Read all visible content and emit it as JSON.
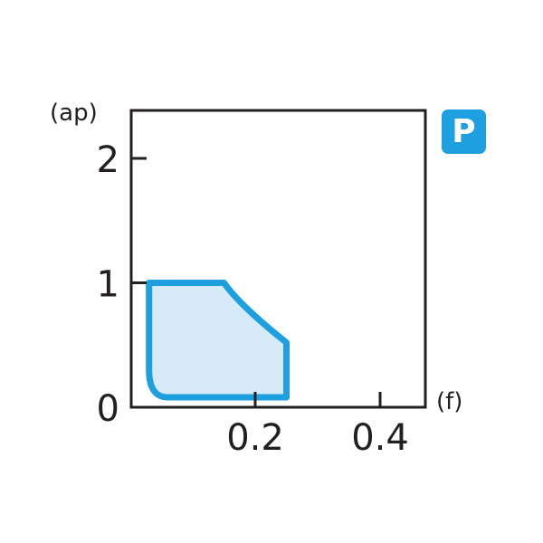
{
  "chart_data": {
    "type": "area",
    "xlabel": "(f)",
    "ylabel": "(ap)",
    "xlim": [
      0,
      0.47
    ],
    "ylim": [
      0,
      2.4
    ],
    "x_ticks": [
      {
        "value": 0.2,
        "label": "0.2"
      },
      {
        "value": 0.4,
        "label": "0.4"
      }
    ],
    "y_ticks": [
      {
        "value": 0,
        "label": "0"
      },
      {
        "value": 1,
        "label": "1"
      },
      {
        "value": 2,
        "label": "2"
      }
    ],
    "grid": false,
    "region": [
      [
        0.03,
        1.0
      ],
      [
        0.15,
        1.0
      ],
      [
        0.175,
        0.85
      ],
      [
        0.21,
        0.67
      ],
      [
        0.25,
        0.52
      ],
      [
        0.25,
        0.08
      ],
      [
        0.06,
        0.08
      ],
      [
        0.038,
        0.14
      ],
      [
        0.03,
        0.3
      ]
    ],
    "colors": {
      "fill": "#d6eaf8",
      "stroke": "#1ea0e0",
      "axis": "#231f20"
    }
  },
  "badge": {
    "label": "P",
    "color": "#1ea0e0"
  }
}
